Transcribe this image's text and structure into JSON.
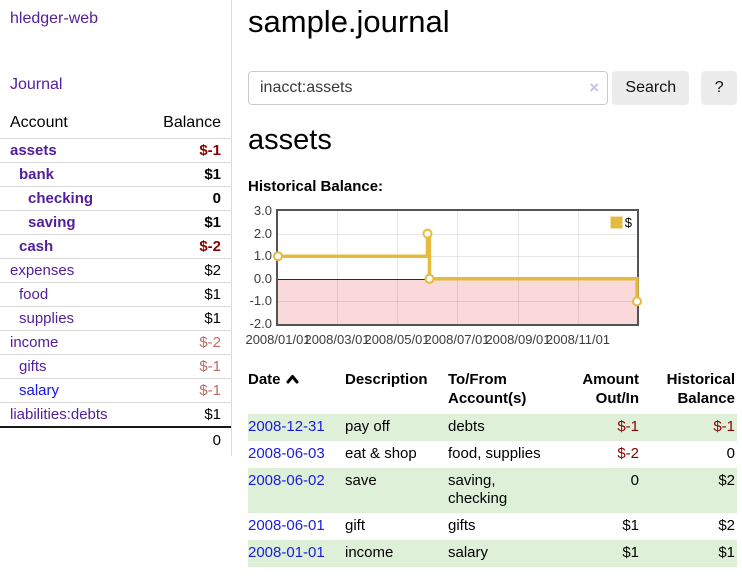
{
  "app": {
    "brand": "hledger-web",
    "nav_journal": "Journal"
  },
  "colors": {
    "link_purple": "#54209a",
    "link_blue": "#1414e8",
    "negative_strong": "#8b0000",
    "negative_light": "#c16a6a",
    "row_green": "#dff0d8",
    "chart_gold": "#e5bb3d",
    "chart_negative_fill": "#f9d9d9",
    "chart_zero_line": "#8b0000"
  },
  "sidebar": {
    "accounts_header": {
      "account": "Account",
      "balance": "Balance"
    },
    "accounts": [
      {
        "name": "assets",
        "balance": "$-1",
        "indent": 0
      },
      {
        "name": "bank",
        "balance": "$1",
        "indent": 1
      },
      {
        "name": "checking",
        "balance": "0",
        "indent": 2
      },
      {
        "name": "saving",
        "balance": "$1",
        "indent": 2
      },
      {
        "name": "cash",
        "balance": "$-2",
        "indent": 1
      },
      {
        "name": "expenses",
        "balance": "$2",
        "indent": 0
      },
      {
        "name": "food",
        "balance": "$1",
        "indent": 1
      },
      {
        "name": "supplies",
        "balance": "$1",
        "indent": 1
      },
      {
        "name": "income",
        "balance": "$-2",
        "indent": 0
      },
      {
        "name": "gifts",
        "balance": "$-1",
        "indent": 1
      },
      {
        "name": "salary",
        "balance": "$-1",
        "indent": 1
      },
      {
        "name": "liabilities:debts",
        "balance": "$1",
        "indent": 0
      }
    ],
    "total": "0"
  },
  "header": {
    "title": "sample.journal"
  },
  "search": {
    "value": "inacct:assets",
    "clear_icon": "×",
    "button_label": "Search",
    "help_label": "?"
  },
  "account_page": {
    "title": "assets",
    "chart_label": "Historical Balance:"
  },
  "chart_data": {
    "type": "line",
    "step": true,
    "title": "Historical Balance",
    "legend": "$",
    "legend_position": "top-right",
    "series": [
      {
        "name": "$",
        "color": "#e5bb3d",
        "points": [
          [
            "2008-01-01",
            1
          ],
          [
            "2008-06-01",
            2
          ],
          [
            "2008-06-03",
            0
          ],
          [
            "2008-12-31",
            -1
          ]
        ]
      }
    ],
    "xlim": [
      "2008-01-01",
      "2008-12-31"
    ],
    "ylim": [
      -2,
      3
    ],
    "ytick_labels": [
      "3.0",
      "2.0",
      "1.0",
      "0.0",
      "-1.0",
      "-2.0"
    ],
    "xtick_labels": [
      "2008/01/01",
      "2008/03/01",
      "2008/05/01",
      "2008/07/01",
      "2008/09/01",
      "2008/11/01"
    ],
    "grid": true,
    "negative_region_fill": "#f9d9d9",
    "zero_line_color": "#8b0000"
  },
  "register": {
    "columns": [
      "Date",
      "Description",
      "To/From Account(s)",
      "Amount Out/In",
      "Historical Balance"
    ],
    "rows": [
      {
        "date": "2008-12-31",
        "description": "pay off",
        "accounts": "debts",
        "amount": "$-1",
        "balance": "$-1"
      },
      {
        "date": "2008-06-03",
        "description": "eat & shop",
        "accounts": "food, supplies",
        "amount": "$-2",
        "balance": "0"
      },
      {
        "date": "2008-06-02",
        "description": "save",
        "accounts": "saving,\nchecking",
        "amount": "0",
        "balance": "$2"
      },
      {
        "date": "2008-06-01",
        "description": "gift",
        "accounts": "gifts",
        "amount": "$1",
        "balance": "$2"
      },
      {
        "date": "2008-01-01",
        "description": "income",
        "accounts": "salary",
        "amount": "$1",
        "balance": "$1"
      }
    ]
  }
}
